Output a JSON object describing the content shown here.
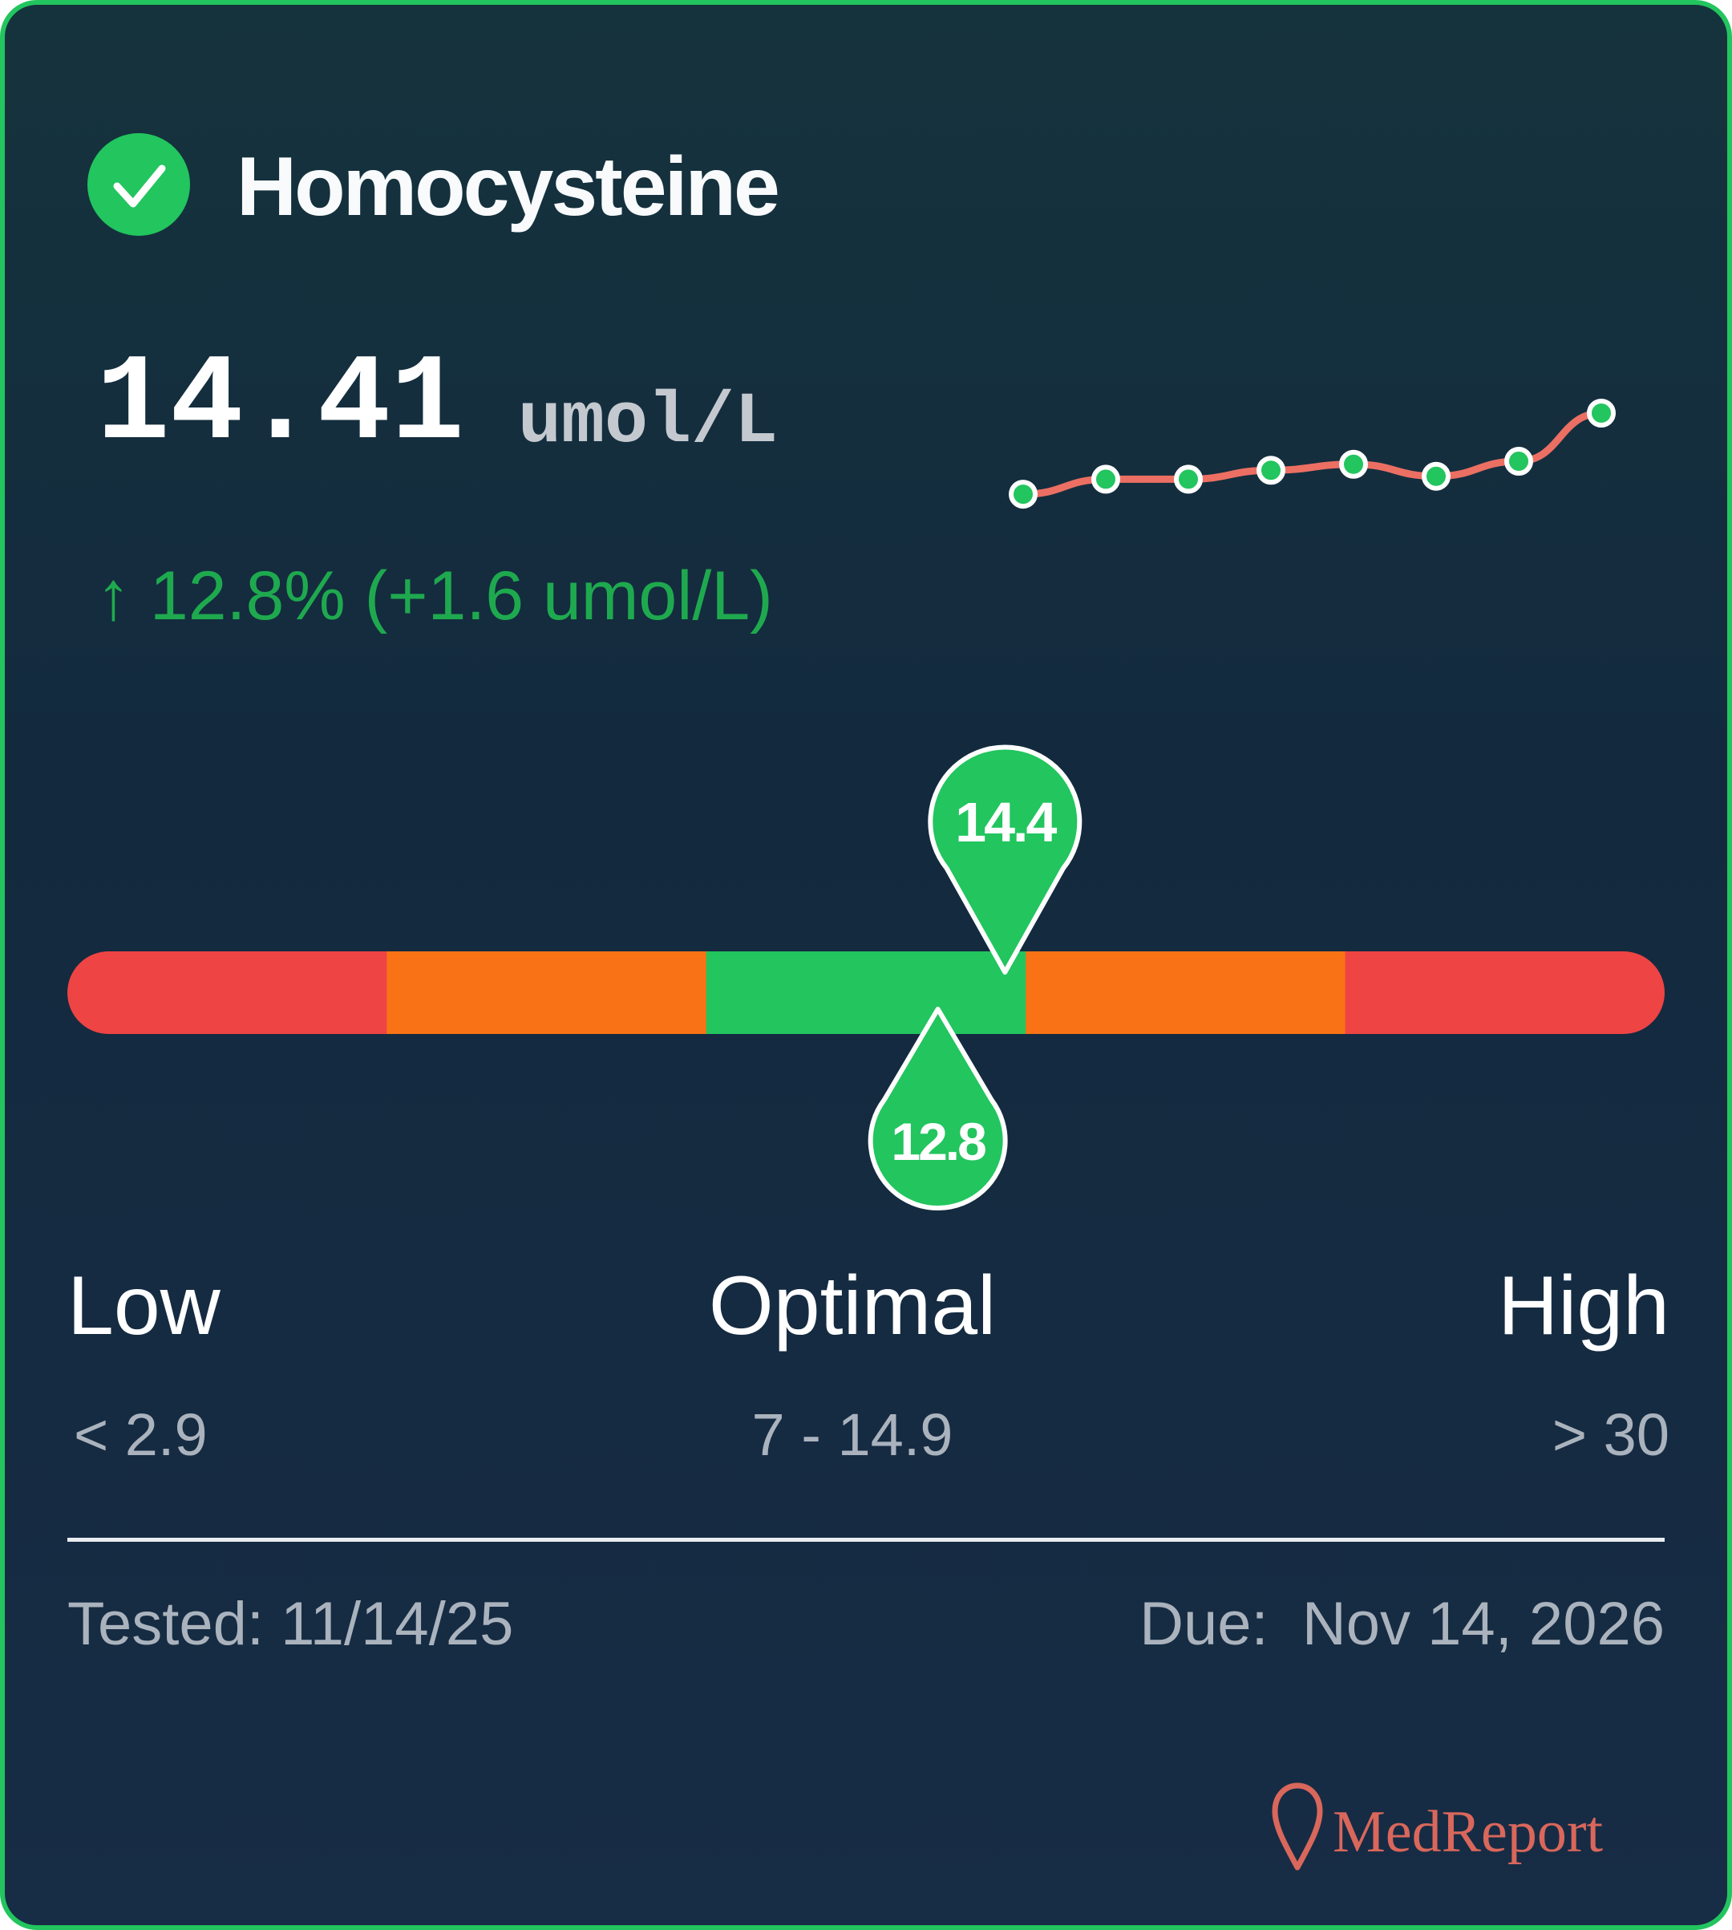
{
  "biomarker": {
    "name": "Homocysteine",
    "status_icon": "check-circle-icon",
    "status_color": "#22c55e",
    "value": "14.41",
    "unit": "umol/L",
    "change_text": "↑ 12.8% (+1.6 umol/L)",
    "change_color": "#1fa94f"
  },
  "trend": {
    "values": [
      11.7,
      12.2,
      12.2,
      12.5,
      12.7,
      12.3,
      12.8,
      14.41
    ],
    "line_color": "#ec6f63",
    "point_color": "#22c55e"
  },
  "range_bar": {
    "segments": [
      {
        "zone": "low-critical",
        "color": "#ef4444"
      },
      {
        "zone": "low",
        "color": "#f97316"
      },
      {
        "zone": "optimal",
        "color": "#22c55e"
      },
      {
        "zone": "high",
        "color": "#f97316"
      },
      {
        "zone": "high-critical",
        "color": "#ef4444"
      }
    ],
    "current_marker": {
      "label": "14.4",
      "position_fraction": 0.587
    },
    "previous_marker": {
      "label": "12.8",
      "position_fraction": 0.545
    }
  },
  "zones": {
    "low": {
      "label": "Low",
      "range": "< 2.9"
    },
    "optimal": {
      "label": "Optimal",
      "range": "7 - 14.9"
    },
    "high": {
      "label": "High",
      "range": "> 30"
    }
  },
  "footer": {
    "tested": "Tested: 11/14/25",
    "due": "Due:  Nov 14, 2026"
  },
  "brand": {
    "name": "MedReport",
    "icon": "map-pin-icon",
    "color": "#d9675b"
  }
}
